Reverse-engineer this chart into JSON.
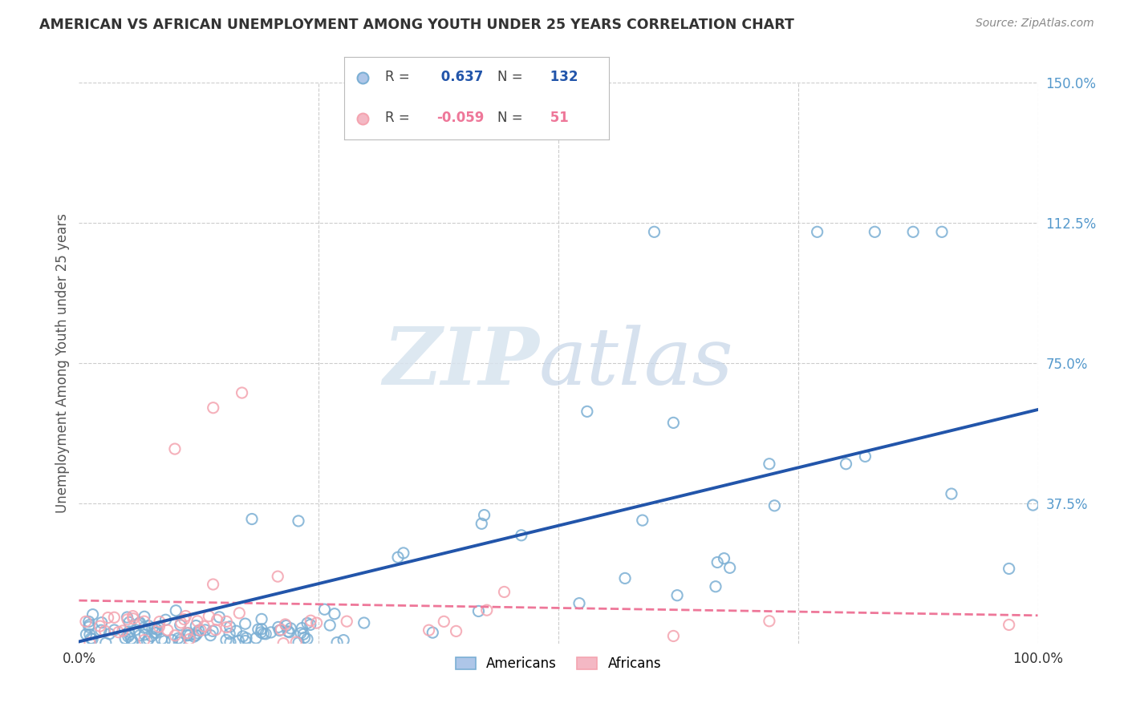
{
  "title": "AMERICAN VS AFRICAN UNEMPLOYMENT AMONG YOUTH UNDER 25 YEARS CORRELATION CHART",
  "source": "Source: ZipAtlas.com",
  "ylabel": "Unemployment Among Youth under 25 years",
  "xlim": [
    0.0,
    1.0
  ],
  "ylim": [
    0.0,
    1.5
  ],
  "ytick_labels": [
    "37.5%",
    "75.0%",
    "112.5%",
    "150.0%"
  ],
  "ytick_vals": [
    0.375,
    0.75,
    1.125,
    1.5
  ],
  "americans_R": 0.637,
  "americans_N": 132,
  "africans_R": -0.059,
  "africans_N": 51,
  "blue_color": "#7BAFD4",
  "pink_color": "#F4A4B0",
  "blue_line_color": "#2255AA",
  "pink_line_color": "#EE7799",
  "background_color": "#FFFFFF",
  "grid_color": "#CCCCCC",
  "title_color": "#333333",
  "axis_label_color": "#555555",
  "tick_color_right": "#5599CC",
  "legend_blue_fill": "#AEC6E8",
  "legend_pink_fill": "#F4B8C4"
}
